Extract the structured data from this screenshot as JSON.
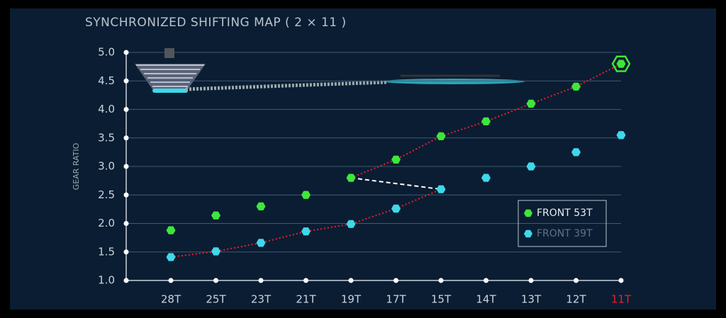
{
  "chart_data": {
    "type": "scatter",
    "title": "SYNCHRONIZED SHIFTING MAP ( 2 × 11 )",
    "y_label": "GEAR RATIO",
    "categories": [
      "28T",
      "25T",
      "23T",
      "21T",
      "19T",
      "17T",
      "15T",
      "14T",
      "13T",
      "12T",
      "11T"
    ],
    "category_colors": [
      "#c8d4dc",
      "#c8d4dc",
      "#c8d4dc",
      "#c8d4dc",
      "#c8d4dc",
      "#c8d4dc",
      "#c8d4dc",
      "#c8d4dc",
      "#c8d4dc",
      "#c8d4dc",
      "#e8202a"
    ],
    "series": [
      {
        "name": "FRONT 53T",
        "color": "#3fe63a",
        "values": [
          1.88,
          2.14,
          2.3,
          2.5,
          2.8,
          3.12,
          3.53,
          3.79,
          4.1,
          4.4,
          4.8
        ]
      },
      {
        "name": "FRONT 39T",
        "color": "#3ed8ea",
        "values": [
          1.41,
          1.51,
          1.66,
          1.86,
          1.99,
          2.26,
          2.6,
          2.8,
          3.0,
          3.25,
          3.55
        ]
      }
    ],
    "ylim": [
      1,
      5
    ],
    "yticks": [
      {
        "value": 1,
        "label": "1.0"
      },
      {
        "value": 1.5,
        "label": "1.5"
      },
      {
        "value": 2,
        "label": "2.0"
      },
      {
        "value": 2.5,
        "label": "2.5"
      },
      {
        "value": 3,
        "label": "3.0"
      },
      {
        "value": 3.5,
        "label": "3.5"
      },
      {
        "value": 4,
        "label": "4.0"
      },
      {
        "value": 4.5,
        "label": "4.5"
      },
      {
        "value": 5,
        "label": "5.0"
      }
    ],
    "grid": true,
    "legend": "lower right"
  }
}
